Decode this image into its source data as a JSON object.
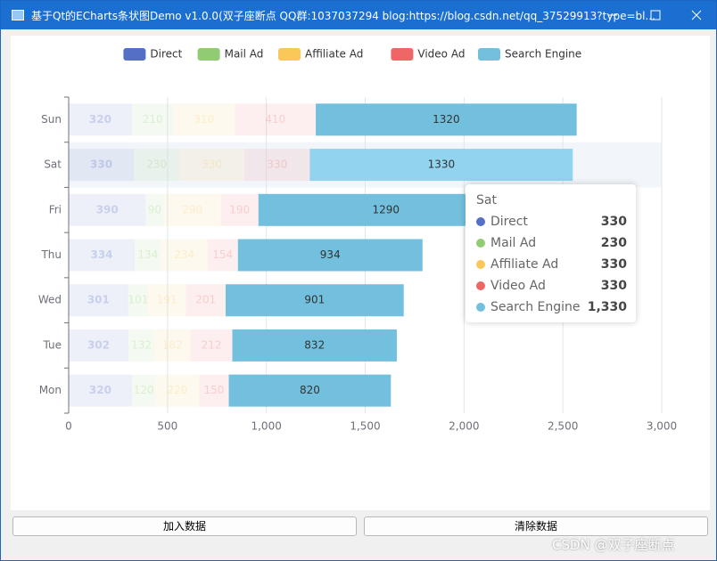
{
  "window": {
    "title": "基于Qt的ECharts条状图Demo v1.0.0(双子座断点 QQ群:1037037294  blog:https://blog.csdn.net/qq_37529913?type=bl..."
  },
  "chart_data": {
    "type": "stacked-bar-horizontal",
    "categories": [
      "Mon",
      "Tue",
      "Wed",
      "Thu",
      "Fri",
      "Sat",
      "Sun"
    ],
    "series": [
      {
        "name": "Direct",
        "color": "#5470c6",
        "values": [
          320,
          302,
          301,
          334,
          390,
          330,
          320
        ]
      },
      {
        "name": "Mail Ad",
        "color": "#91cc75",
        "values": [
          120,
          132,
          101,
          134,
          90,
          230,
          210
        ]
      },
      {
        "name": "Affiliate Ad",
        "color": "#fac858",
        "values": [
          220,
          182,
          191,
          234,
          290,
          330,
          310
        ]
      },
      {
        "name": "Video Ad",
        "color": "#ee6666",
        "values": [
          150,
          212,
          201,
          154,
          190,
          330,
          410
        ]
      },
      {
        "name": "Search Engine",
        "color": "#73c0de",
        "values": [
          820,
          832,
          901,
          934,
          1290,
          1330,
          1320
        ]
      }
    ],
    "focus": "Search Engine",
    "xlim": [
      0,
      3000
    ],
    "xticks": [
      0,
      500,
      {
        "value": 1000,
        "label": "1,000"
      },
      {
        "value": 1500,
        "label": "1,500"
      },
      {
        "value": 2000,
        "label": "2,000"
      },
      {
        "value": 2500,
        "label": "2,500"
      },
      {
        "value": 3000,
        "label": "3,000"
      }
    ],
    "grid": true,
    "legend": "top",
    "tooltip": {
      "title": "Sat",
      "items": [
        {
          "name": "Direct",
          "value": 330
        },
        {
          "name": "Mail Ad",
          "value": 230
        },
        {
          "name": "Affiliate Ad",
          "value": 330
        },
        {
          "name": "Video Ad",
          "value": 330
        },
        {
          "name": "Search Engine",
          "value": 1330,
          "value_label": "1,330"
        }
      ]
    }
  },
  "buttons": [
    "加入数据",
    "清除数据"
  ],
  "watermark": "CSDN @双子座断点"
}
